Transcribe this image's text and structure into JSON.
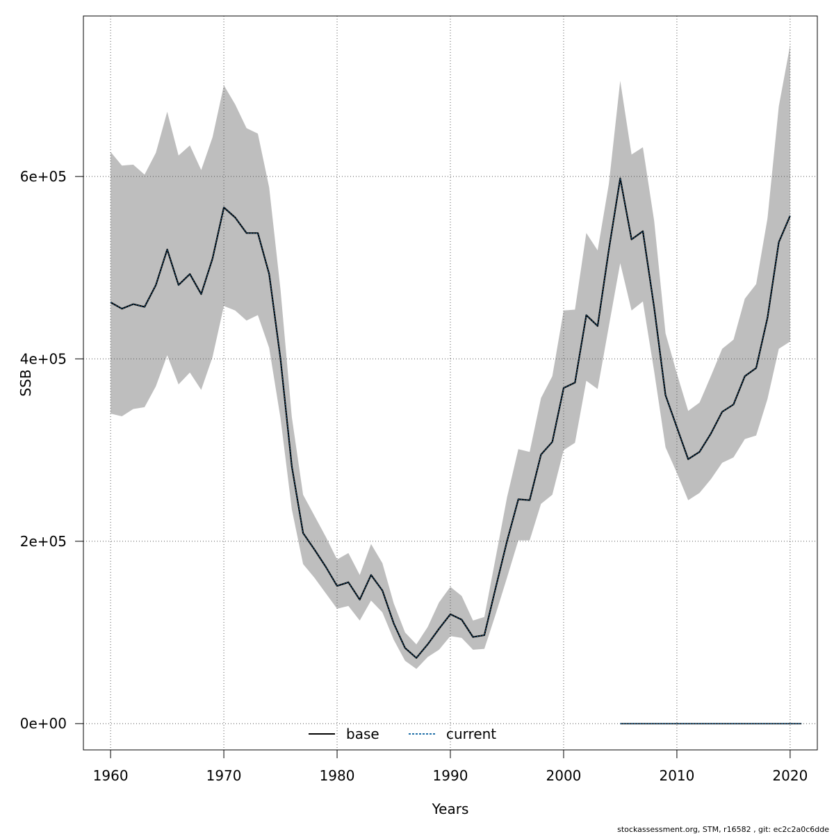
{
  "chart_data": {
    "type": "line",
    "xlabel": "Years",
    "ylabel": "SSB",
    "xlim": [
      1957.6,
      2022.4
    ],
    "ylim": [
      -28800,
      776000
    ],
    "x_ticks": [
      1960,
      1970,
      1980,
      1990,
      2000,
      2010,
      2020
    ],
    "x_tick_labels": [
      "1960",
      "1970",
      "1980",
      "1990",
      "2000",
      "2010",
      "2020"
    ],
    "y_ticks": [
      0,
      200000,
      400000,
      600000
    ],
    "y_tick_labels": [
      "0e+00",
      "2e+05",
      "4e+05",
      "6e+05"
    ],
    "grid": true,
    "legend": {
      "position": "bottom-center",
      "entries": [
        {
          "label": "base",
          "color": "#000000",
          "style": "solid"
        },
        {
          "label": "current",
          "color": "#1f6fa8",
          "style": "dotted"
        }
      ]
    },
    "band_color": "#bebebe",
    "series": [
      {
        "name": "base",
        "x": [
          1960,
          1961,
          1962,
          1963,
          1964,
          1965,
          1966,
          1967,
          1968,
          1969,
          1970,
          1971,
          1972,
          1973,
          1974,
          1975,
          1976,
          1977,
          1978,
          1979,
          1980,
          1981,
          1982,
          1983,
          1984,
          1985,
          1986,
          1987,
          1988,
          1989,
          1990,
          1991,
          1992,
          1993,
          1994,
          1995,
          1996,
          1997,
          1998,
          1999,
          2000,
          2001,
          2002,
          2003,
          2004,
          2005,
          2006,
          2007,
          2008,
          2009,
          2010,
          2011,
          2012,
          2013,
          2014,
          2015,
          2016,
          2017,
          2018,
          2019,
          2020
        ],
        "values": [
          462000,
          455000,
          460000,
          457000,
          481000,
          520000,
          481000,
          493000,
          471000,
          510000,
          566000,
          555000,
          538000,
          538000,
          493000,
          400000,
          282000,
          209000,
          191000,
          172000,
          151000,
          155000,
          136000,
          163000,
          146000,
          110000,
          83000,
          72000,
          87000,
          104000,
          120000,
          114000,
          95000,
          97000,
          149000,
          200000,
          246000,
          245000,
          295000,
          309000,
          368000,
          374000,
          448000,
          436000,
          520000,
          598000,
          531000,
          540000,
          456000,
          360000,
          325000,
          290000,
          298000,
          318000,
          342000,
          350000,
          381000,
          390000,
          445000,
          528000,
          557000
        ],
        "lower": [
          340000,
          337000,
          345000,
          347000,
          370000,
          404000,
          372000,
          385000,
          366000,
          402000,
          458000,
          453000,
          442000,
          448000,
          412000,
          335000,
          235000,
          175000,
          160000,
          143000,
          126000,
          129000,
          113000,
          135000,
          122000,
          92000,
          69000,
          60000,
          73000,
          81000,
          96000,
          94000,
          81000,
          82000,
          120000,
          160000,
          201000,
          201000,
          241000,
          251000,
          300000,
          308000,
          376000,
          367000,
          436000,
          505000,
          453000,
          463000,
          386000,
          303000,
          275000,
          245000,
          253000,
          268000,
          286000,
          292000,
          312000,
          316000,
          356000,
          411000,
          419000
        ],
        "upper": [
          627000,
          612000,
          613000,
          602000,
          626000,
          671000,
          623000,
          634000,
          607000,
          643000,
          700000,
          679000,
          653000,
          647000,
          588000,
          476000,
          336000,
          251000,
          228000,
          205000,
          180000,
          187000,
          163000,
          197000,
          176000,
          132000,
          100000,
          87000,
          106000,
          133000,
          150000,
          140000,
          113000,
          117000,
          182000,
          248000,
          301000,
          298000,
          357000,
          381000,
          453000,
          454000,
          538000,
          519000,
          592000,
          705000,
          624000,
          632000,
          551000,
          428000,
          384000,
          343000,
          352000,
          381000,
          411000,
          421000,
          466000,
          482000,
          554000,
          677000,
          744000
        ]
      },
      {
        "name": "current",
        "x": [
          2005,
          2021
        ],
        "values": [
          0,
          0
        ]
      }
    ]
  },
  "footer": "stockassessment.org, STM, r16582 , git: ec2c2a0c6dde"
}
